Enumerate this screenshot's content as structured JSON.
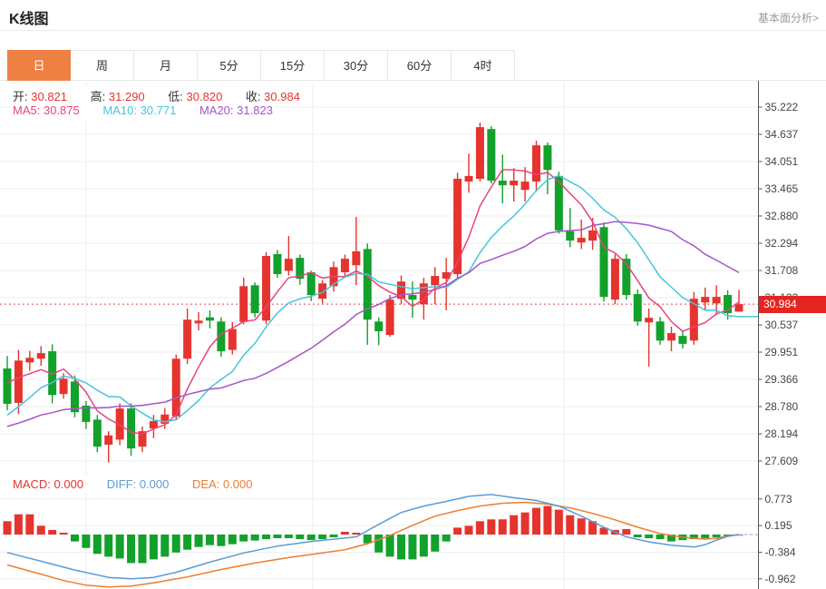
{
  "header": {
    "title": "K线图",
    "link_label": "基本面分析>"
  },
  "tabs": {
    "items": [
      "日",
      "周",
      "月",
      "5分",
      "15分",
      "30分",
      "60分",
      "4时"
    ],
    "selected_index": 0
  },
  "legend": {
    "open_label": "开:",
    "open_value": "30.821",
    "high_label": "高:",
    "high_value": "31.290",
    "low_label": "低:",
    "low_value": "30.820",
    "close_label": "收:",
    "close_value": "30.984",
    "ma5_label": "MA5:",
    "ma5_value": "30.875",
    "ma10_label": "MA10:",
    "ma10_value": "30.771",
    "ma20_label": "MA20:",
    "ma20_value": "31.823",
    "macd_label": "MACD:",
    "macd_value": "0.000",
    "diff_label": "DIFF:",
    "diff_value": "0.000",
    "dea_label": "DEA:",
    "dea_value": "0.000"
  },
  "colors": {
    "up": "#e5342e",
    "down": "#12a12b",
    "ma5": "#e8447c",
    "ma10": "#45c5dc",
    "ma20": "#a455c8",
    "diff": "#5b9bd5",
    "dea": "#ed7d31",
    "grid": "#ededed",
    "axis": "#555",
    "tick_text": "#444",
    "last_price_line": "#e64545",
    "last_price_bg": "#e42522",
    "tab_active": "#ee8043"
  },
  "chart_data": {
    "type": "candlestick",
    "title": "K线图",
    "panels": [
      "price",
      "macd"
    ],
    "price_axis": {
      "ticks": [
        35.222,
        34.637,
        34.051,
        33.465,
        32.88,
        32.294,
        31.708,
        31.122,
        30.537,
        29.951,
        29.366,
        28.78,
        28.194,
        27.609
      ],
      "last_price": 30.984
    },
    "ohlc": {
      "open": 30.821,
      "high": 31.29,
      "low": 30.82,
      "close": 30.984
    },
    "ma_values": {
      "ma5": 30.875,
      "ma10": 30.771,
      "ma20": 31.823
    },
    "pre_closes": [
      28.3,
      28.2,
      28.1,
      28.0,
      28.1,
      28.2,
      28.1,
      28.0,
      28.0,
      28.1,
      27.9,
      27.9,
      27.8,
      27.9,
      28.0,
      29.2,
      29.4,
      29.5,
      29.5
    ],
    "candles": [
      [
        29.6,
        29.87,
        28.7,
        28.84
      ],
      [
        28.86,
        30.0,
        28.62,
        29.77
      ],
      [
        29.73,
        29.98,
        29.55,
        29.83
      ],
      [
        29.81,
        30.08,
        29.66,
        29.93
      ],
      [
        29.97,
        30.12,
        28.85,
        29.03
      ],
      [
        29.05,
        29.5,
        28.95,
        29.38
      ],
      [
        29.32,
        29.45,
        28.55,
        28.66
      ],
      [
        28.8,
        28.9,
        28.3,
        28.45
      ],
      [
        28.5,
        28.6,
        27.8,
        27.92
      ],
      [
        27.96,
        28.25,
        27.58,
        28.16
      ],
      [
        28.07,
        28.85,
        27.95,
        28.74
      ],
      [
        28.74,
        28.85,
        27.72,
        27.88
      ],
      [
        27.92,
        28.35,
        27.8,
        28.25
      ],
      [
        28.31,
        28.6,
        28.1,
        28.47
      ],
      [
        28.41,
        28.75,
        28.3,
        28.61
      ],
      [
        28.57,
        29.9,
        28.5,
        29.81
      ],
      [
        29.81,
        30.89,
        29.7,
        30.65
      ],
      [
        30.57,
        30.81,
        30.42,
        30.63
      ],
      [
        30.7,
        30.85,
        30.46,
        30.63
      ],
      [
        30.61,
        30.7,
        29.85,
        29.97
      ],
      [
        30.0,
        30.6,
        29.9,
        30.45
      ],
      [
        30.6,
        31.55,
        30.55,
        31.37
      ],
      [
        31.39,
        31.45,
        30.7,
        30.79
      ],
      [
        30.63,
        32.1,
        30.55,
        32.02
      ],
      [
        32.06,
        32.15,
        31.55,
        31.63
      ],
      [
        31.7,
        32.45,
        31.6,
        31.96
      ],
      [
        31.98,
        32.05,
        31.4,
        31.53
      ],
      [
        31.67,
        31.7,
        31.05,
        31.18
      ],
      [
        31.1,
        31.5,
        31.0,
        31.43
      ],
      [
        31.37,
        31.9,
        31.25,
        31.78
      ],
      [
        31.67,
        32.05,
        31.55,
        31.96
      ],
      [
        31.82,
        32.86,
        31.39,
        32.12
      ],
      [
        32.17,
        32.29,
        30.11,
        30.65
      ],
      [
        30.61,
        30.7,
        30.1,
        30.4
      ],
      [
        30.32,
        31.18,
        30.28,
        31.08
      ],
      [
        31.1,
        31.6,
        30.98,
        31.47
      ],
      [
        31.18,
        31.47,
        30.69,
        31.08
      ],
      [
        30.98,
        31.55,
        30.65,
        31.43
      ],
      [
        31.39,
        31.78,
        30.98,
        31.59
      ],
      [
        31.53,
        31.98,
        30.85,
        31.67
      ],
      [
        31.63,
        33.81,
        31.53,
        33.68
      ],
      [
        33.62,
        34.22,
        33.38,
        33.74
      ],
      [
        33.68,
        34.89,
        33.62,
        34.79
      ],
      [
        34.75,
        34.81,
        33.58,
        33.64
      ],
      [
        33.64,
        34.2,
        33.15,
        33.54
      ],
      [
        33.54,
        33.91,
        33.19,
        33.64
      ],
      [
        33.44,
        33.93,
        33.19,
        33.62
      ],
      [
        33.62,
        34.5,
        33.4,
        34.4
      ],
      [
        34.4,
        34.46,
        33.35,
        33.87
      ],
      [
        33.74,
        33.83,
        32.5,
        32.57
      ],
      [
        32.55,
        33.05,
        32.21,
        32.35
      ],
      [
        32.31,
        32.8,
        32.17,
        32.41
      ],
      [
        32.35,
        32.84,
        32.15,
        32.57
      ],
      [
        32.64,
        32.74,
        31.04,
        31.14
      ],
      [
        31.08,
        32.06,
        30.98,
        31.96
      ],
      [
        31.96,
        32.06,
        31.08,
        31.18
      ],
      [
        31.2,
        31.3,
        30.52,
        30.61
      ],
      [
        30.59,
        30.89,
        29.64,
        30.69
      ],
      [
        30.61,
        30.71,
        30.11,
        30.2
      ],
      [
        30.2,
        30.5,
        29.97,
        30.36
      ],
      [
        30.3,
        30.4,
        30.03,
        30.13
      ],
      [
        30.2,
        31.24,
        30.11,
        31.1
      ],
      [
        31.02,
        31.34,
        30.85,
        31.14
      ],
      [
        31.0,
        31.39,
        30.75,
        31.14
      ],
      [
        31.18,
        31.28,
        30.65,
        30.79
      ],
      [
        30.821,
        31.29,
        30.82,
        30.984
      ]
    ],
    "macd": {
      "values": {
        "macd": 0.0,
        "diff": 0.0,
        "dea": 0.0
      },
      "ticks": [
        0.773,
        0.195,
        -0.384,
        -0.962
      ],
      "hist": [
        0.29,
        0.44,
        0.44,
        0.19,
        0.1,
        0.04,
        -0.15,
        -0.29,
        -0.42,
        -0.48,
        -0.52,
        -0.62,
        -0.62,
        -0.54,
        -0.48,
        -0.39,
        -0.33,
        -0.27,
        -0.23,
        -0.25,
        -0.21,
        -0.15,
        -0.13,
        -0.1,
        -0.08,
        -0.08,
        -0.1,
        -0.12,
        -0.1,
        -0.06,
        0.06,
        0.04,
        -0.19,
        -0.39,
        -0.48,
        -0.54,
        -0.54,
        -0.48,
        -0.37,
        -0.15,
        0.15,
        0.19,
        0.29,
        0.33,
        0.33,
        0.42,
        0.48,
        0.58,
        0.62,
        0.54,
        0.42,
        0.35,
        0.29,
        0.15,
        0.1,
        0.12,
        -0.06,
        -0.08,
        -0.1,
        -0.15,
        -0.12,
        -0.1,
        -0.08,
        -0.06,
        -0.04,
        0.0
      ],
      "diff_line": [
        [
          0,
          -0.39
        ],
        [
          3,
          -0.58
        ],
        [
          6,
          -0.77
        ],
        [
          9,
          -0.93
        ],
        [
          11,
          -0.96
        ],
        [
          13,
          -0.93
        ],
        [
          15,
          -0.82
        ],
        [
          18,
          -0.6
        ],
        [
          21,
          -0.4
        ],
        [
          24,
          -0.25
        ],
        [
          27,
          -0.15
        ],
        [
          29,
          -0.1
        ],
        [
          31,
          -0.05
        ],
        [
          33,
          0.22
        ],
        [
          35,
          0.48
        ],
        [
          37,
          0.62
        ],
        [
          39,
          0.72
        ],
        [
          41,
          0.83
        ],
        [
          43,
          0.87
        ],
        [
          45,
          0.8
        ],
        [
          47,
          0.74
        ],
        [
          49,
          0.62
        ],
        [
          51,
          0.4
        ],
        [
          53,
          0.16
        ],
        [
          55,
          -0.05
        ],
        [
          57,
          -0.16
        ],
        [
          59,
          -0.23
        ],
        [
          61,
          -0.27
        ],
        [
          62,
          -0.22
        ],
        [
          63,
          -0.12
        ],
        [
          64,
          -0.04
        ],
        [
          65,
          0.0
        ]
      ],
      "dea_line": [
        [
          0,
          -0.66
        ],
        [
          3,
          -0.86
        ],
        [
          5,
          -1.0
        ],
        [
          7,
          -1.1
        ],
        [
          9,
          -1.14
        ],
        [
          11,
          -1.12
        ],
        [
          13,
          -1.05
        ],
        [
          16,
          -0.92
        ],
        [
          19,
          -0.76
        ],
        [
          22,
          -0.62
        ],
        [
          25,
          -0.5
        ],
        [
          28,
          -0.4
        ],
        [
          30,
          -0.33
        ],
        [
          32,
          -0.2
        ],
        [
          34,
          -0.02
        ],
        [
          36,
          0.2
        ],
        [
          38,
          0.4
        ],
        [
          40,
          0.52
        ],
        [
          42,
          0.62
        ],
        [
          44,
          0.68
        ],
        [
          46,
          0.7
        ],
        [
          48,
          0.66
        ],
        [
          50,
          0.58
        ],
        [
          52,
          0.46
        ],
        [
          54,
          0.32
        ],
        [
          56,
          0.16
        ],
        [
          58,
          0.02
        ],
        [
          60,
          -0.06
        ],
        [
          62,
          -0.1
        ],
        [
          63,
          -0.08
        ],
        [
          64,
          -0.03
        ],
        [
          65,
          0.0
        ]
      ]
    }
  }
}
